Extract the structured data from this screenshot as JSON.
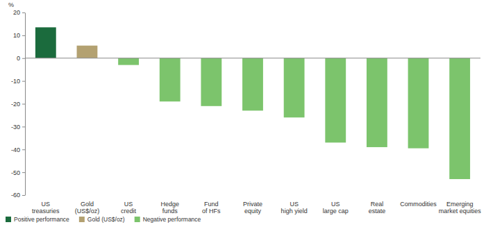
{
  "chart_data": {
    "type": "bar",
    "y_label": "%",
    "categories": [
      "US treasuries",
      "Gold (US$/oz)",
      "US credit",
      "Hedge funds",
      "Fund of HFs",
      "Private equity",
      "US high yield",
      "US large cap",
      "Real estate",
      "Commodities",
      "Emerging market equities"
    ],
    "series": [
      {
        "name": "Positive performance",
        "color": "#1b6b3d",
        "values": [
          13.5,
          null,
          null,
          null,
          null,
          null,
          null,
          null,
          null,
          null,
          null
        ]
      },
      {
        "name": "Gold (US$/oz)",
        "color": "#b3a171",
        "values": [
          null,
          5.5,
          null,
          null,
          null,
          null,
          null,
          null,
          null,
          null,
          null
        ]
      },
      {
        "name": "Negative performance",
        "color": "#7cc46c",
        "values": [
          null,
          null,
          -3,
          -19,
          -21,
          -23,
          -26,
          -37,
          -39,
          -39.5,
          -53
        ]
      }
    ],
    "stacked": true,
    "ylim": [
      -60,
      20
    ],
    "yticks": [
      -60,
      -50,
      -40,
      -30,
      -20,
      -10,
      0,
      10,
      20
    ],
    "grid": false,
    "legend": "bottom-left"
  }
}
